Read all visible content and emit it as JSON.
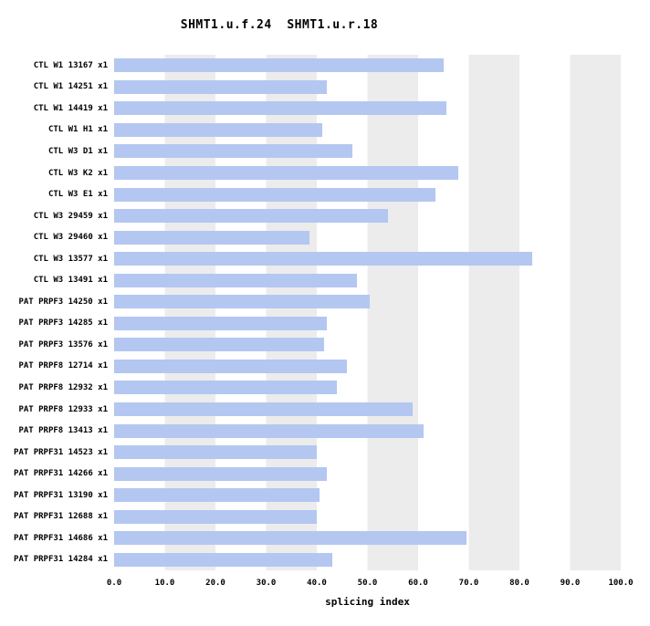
{
  "chart_data": {
    "type": "bar",
    "orientation": "horizontal",
    "title": "SHMT1.u.f.24  SHMT1.u.r.18",
    "xlabel": "splicing index",
    "xlim": [
      0,
      100
    ],
    "xticks": [
      "0.0",
      "10.0",
      "20.0",
      "30.0",
      "40.0",
      "50.0",
      "60.0",
      "70.0",
      "80.0",
      "90.0",
      "100.0"
    ],
    "categories": [
      "CTL W1 13167 x1",
      "CTL W1 14251 x1",
      "CTL W1 14419 x1",
      "CTL W1 H1 x1",
      "CTL W3 D1 x1",
      "CTL W3 K2 x1",
      "CTL W3 E1 x1",
      "CTL W3 29459 x1",
      "CTL W3 29460 x1",
      "CTL W3 13577 x1",
      "CTL W3 13491 x1",
      "PAT PRPF3 14250 x1",
      "PAT PRPF3 14285 x1",
      "PAT PRPF3 13576 x1",
      "PAT PRPF8 12714 x1",
      "PAT PRPF8 12932 x1",
      "PAT PRPF8 12933 x1",
      "PAT PRPF8 13413 x1",
      "PAT PRPF31 14523 x1",
      "PAT PRPF31 14266 x1",
      "PAT PRPF31 13190 x1",
      "PAT PRPF31 12688 x1",
      "PAT PRPF31 14686 x1",
      "PAT PRPF31 14284 x1"
    ],
    "values": [
      65,
      42,
      65.5,
      41,
      47,
      68,
      63.5,
      54,
      38.5,
      82.5,
      48,
      50.5,
      42,
      41.5,
      46,
      44,
      59,
      61,
      40,
      42,
      40.5,
      40,
      69.5,
      43
    ],
    "bar_color": "#b3c7f1",
    "band_color": "#ececec",
    "background_color": "#ffffff",
    "grid": "alternating vertical bands every 10 units",
    "legend": "none"
  }
}
